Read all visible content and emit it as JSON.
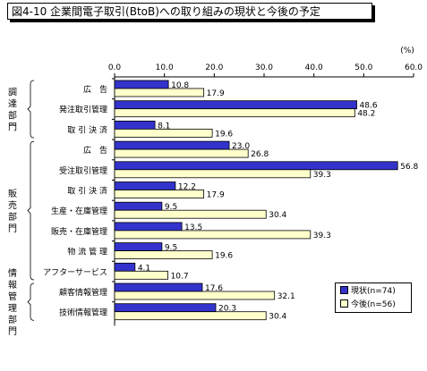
{
  "title": "図4-10  企業間電子取引(BtoB)への取り組みの現状と今後の予定",
  "chart_data": {
    "type": "bar",
    "orientation": "horizontal",
    "unit_label": "(%)",
    "xlim": [
      0,
      60
    ],
    "xticks": [
      "0.0",
      "10.0",
      "20.0",
      "30.0",
      "40.0",
      "50.0",
      "60.0"
    ],
    "grid": false,
    "legend_position": "bottom-right",
    "categories": [
      "広　告",
      "発注取引管理",
      "取 引 決 済",
      "広　告",
      "受注取引管理",
      "取 引 決 済",
      "生産・在庫管理",
      "販売・在庫管理",
      "物 流 管 理",
      "アフターサービス",
      "顧客情報管理",
      "技術情報管理"
    ],
    "groups": [
      {
        "label": "調達部門",
        "start": 0,
        "end": 2
      },
      {
        "label": "販売部門",
        "start": 3,
        "end": 9
      },
      {
        "label": "情報管理部門",
        "start": 10,
        "end": 11
      }
    ],
    "series": [
      {
        "name": "現状(n=74)",
        "color": "#3333cc",
        "values": [
          10.8,
          48.6,
          8.1,
          23.0,
          56.8,
          12.2,
          9.5,
          13.5,
          9.5,
          4.1,
          17.6,
          20.3
        ]
      },
      {
        "name": "今後(n=56)",
        "color": "#ffffcc",
        "values": [
          17.9,
          48.2,
          19.6,
          26.8,
          39.3,
          17.9,
          30.4,
          39.3,
          19.6,
          10.7,
          32.1,
          30.4
        ]
      }
    ]
  }
}
